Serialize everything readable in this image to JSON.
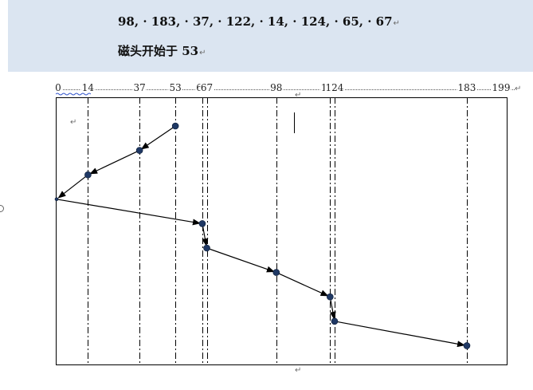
{
  "header": {
    "sequence_text": "98, · 183, · 37, · 122, · 14, · 124, · 65, · 67",
    "start_text": "磁头开始于 53",
    "paragraph_mark": "↵"
  },
  "chart_data": {
    "type": "line",
    "title": "",
    "xlabel": "",
    "ylabel": "",
    "xlim": [
      0,
      199
    ],
    "tick_labels": [
      "0",
      "14",
      "37",
      "53",
      "65",
      "67",
      "98",
      "122",
      "124",
      "183",
      "199"
    ],
    "tick_values": [
      0,
      14,
      37,
      53,
      65,
      67,
      98,
      122,
      124,
      183,
      199
    ],
    "service_order": [
      53,
      37,
      14,
      0,
      65,
      67,
      98,
      122,
      124,
      183
    ],
    "grid": "dash-dot vertical lines at each requested cylinder",
    "point_color": "#1f3864",
    "line_color": "#000000"
  },
  "decor": {
    "stray_mark": "↵"
  }
}
